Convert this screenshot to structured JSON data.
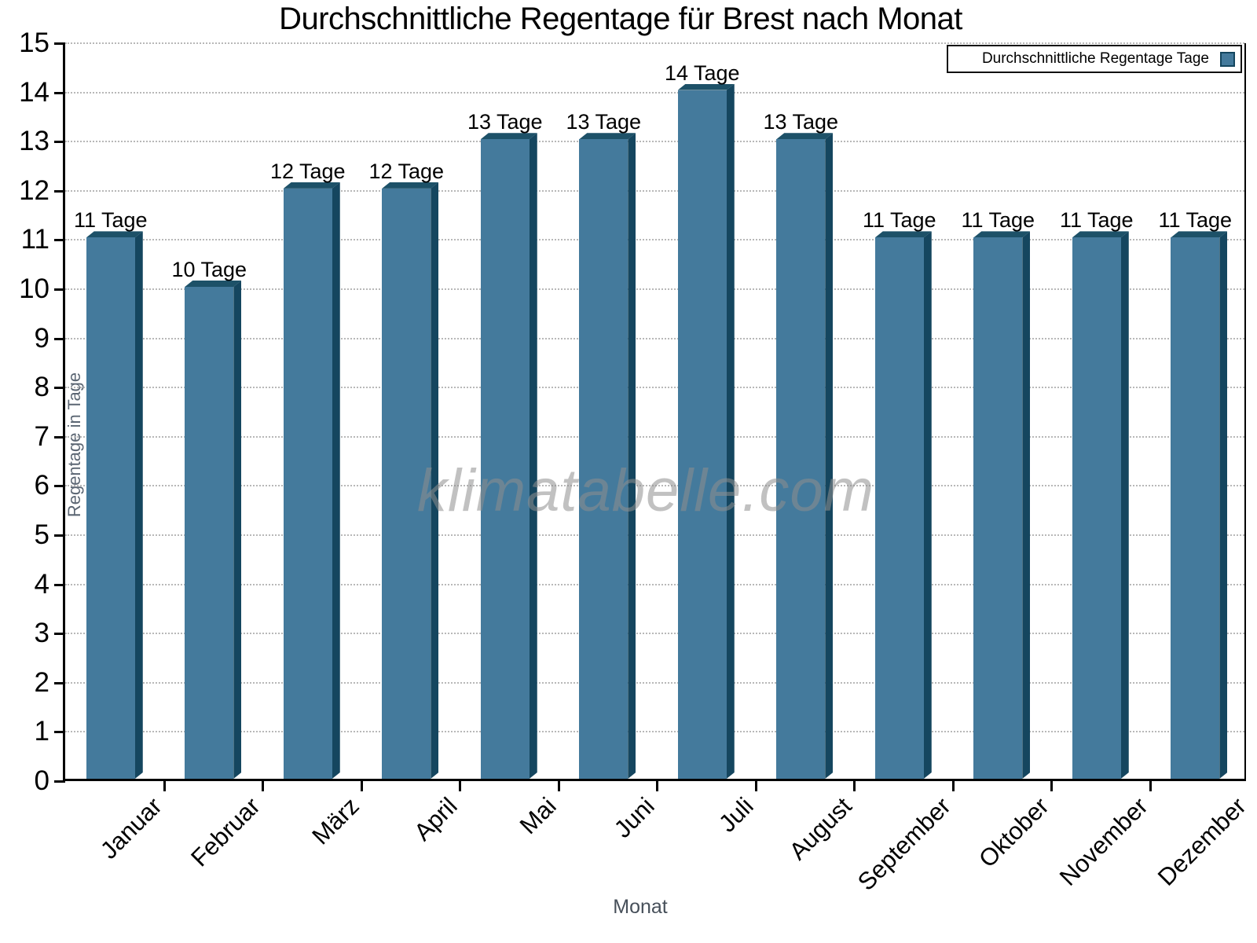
{
  "title": "Durchschnittliche Regentage für Brest nach Monat",
  "legend": {
    "label": "Durchschnittliche Regentage Tage"
  },
  "watermark": "klimatabelle.com",
  "axes": {
    "y_title": "Regentage in Tage",
    "x_title": "Monat"
  },
  "colors": {
    "bar_face": "#447a9c",
    "bar_side": "#15465f",
    "bar_top": "#1d5168",
    "grid": "#b8b8b8",
    "axis": "#000000",
    "muted_text": "#5b6673"
  },
  "chart_data": {
    "type": "bar",
    "title": "Durchschnittliche Regentage für Brest nach Monat",
    "categories": [
      "Januar",
      "Februar",
      "März",
      "April",
      "Mai",
      "Juni",
      "Juli",
      "August",
      "September",
      "Oktober",
      "November",
      "Dezember"
    ],
    "values": [
      11,
      10,
      12,
      12,
      13,
      13,
      14,
      13,
      11,
      11,
      11,
      11
    ],
    "value_labels": [
      "11 Tage",
      "10 Tage",
      "12 Tage",
      "12 Tage",
      "13 Tage",
      "13 Tage",
      "14 Tage",
      "13 Tage",
      "11 Tage",
      "11 Tage",
      "11 Tage",
      "11 Tage"
    ],
    "xlabel": "Monat",
    "ylabel": "Regentage in Tage",
    "ylim": [
      0,
      15
    ],
    "yticks": [
      0,
      1,
      2,
      3,
      4,
      5,
      6,
      7,
      8,
      9,
      10,
      11,
      12,
      13,
      14,
      15
    ],
    "legend": "Durchschnittliche Regentage Tage",
    "legend_position": "top-right",
    "grid": "horizontal-dotted",
    "bar_style": "3d-extruded"
  }
}
